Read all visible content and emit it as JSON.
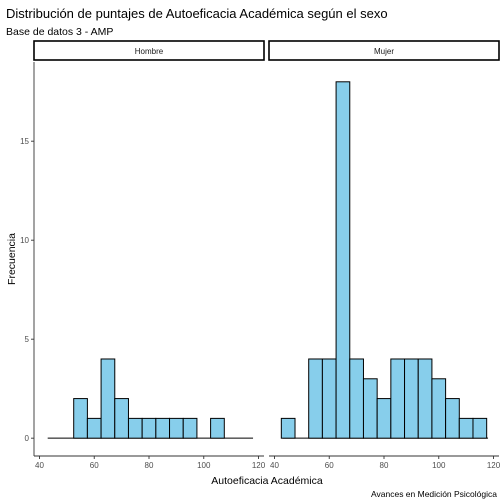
{
  "chart_data": {
    "type": "bar",
    "title": "Distribución de puntajes de Autoeficacia Académica según el sexo",
    "subtitle": "Base de datos 3 - AMP",
    "xlabel": "Autoeficacia Académica",
    "ylabel": "Frecuencia",
    "caption": "Avances en Medición Psicológica",
    "xlim": [
      38,
      122
    ],
    "ylim": [
      -0.9,
      19
    ],
    "x_ticks": [
      40,
      60,
      80,
      100,
      120
    ],
    "y_ticks": [
      0,
      5,
      10,
      15
    ],
    "bin_width": 5,
    "grid": false,
    "bar_color": "#87ceeb",
    "bar_border_color": "#000000",
    "panels": [
      {
        "name": "Hombre",
        "baseline_range": [
          43,
          118
        ],
        "bins": [
          {
            "center": 55,
            "count": 2
          },
          {
            "center": 60,
            "count": 1
          },
          {
            "center": 65,
            "count": 4
          },
          {
            "center": 70,
            "count": 2
          },
          {
            "center": 75,
            "count": 1
          },
          {
            "center": 80,
            "count": 1
          },
          {
            "center": 85,
            "count": 1
          },
          {
            "center": 90,
            "count": 1
          },
          {
            "center": 95,
            "count": 1
          },
          {
            "center": 105,
            "count": 1
          }
        ]
      },
      {
        "name": "Mujer",
        "baseline_range": [
          43,
          118
        ],
        "bins": [
          {
            "center": 45,
            "count": 1
          },
          {
            "center": 55,
            "count": 4
          },
          {
            "center": 60,
            "count": 4
          },
          {
            "center": 65,
            "count": 18
          },
          {
            "center": 70,
            "count": 4
          },
          {
            "center": 75,
            "count": 3
          },
          {
            "center": 80,
            "count": 2
          },
          {
            "center": 85,
            "count": 4
          },
          {
            "center": 90,
            "count": 4
          },
          {
            "center": 95,
            "count": 4
          },
          {
            "center": 100,
            "count": 3
          },
          {
            "center": 105,
            "count": 2
          },
          {
            "center": 110,
            "count": 1
          },
          {
            "center": 115,
            "count": 1
          }
        ]
      }
    ]
  }
}
